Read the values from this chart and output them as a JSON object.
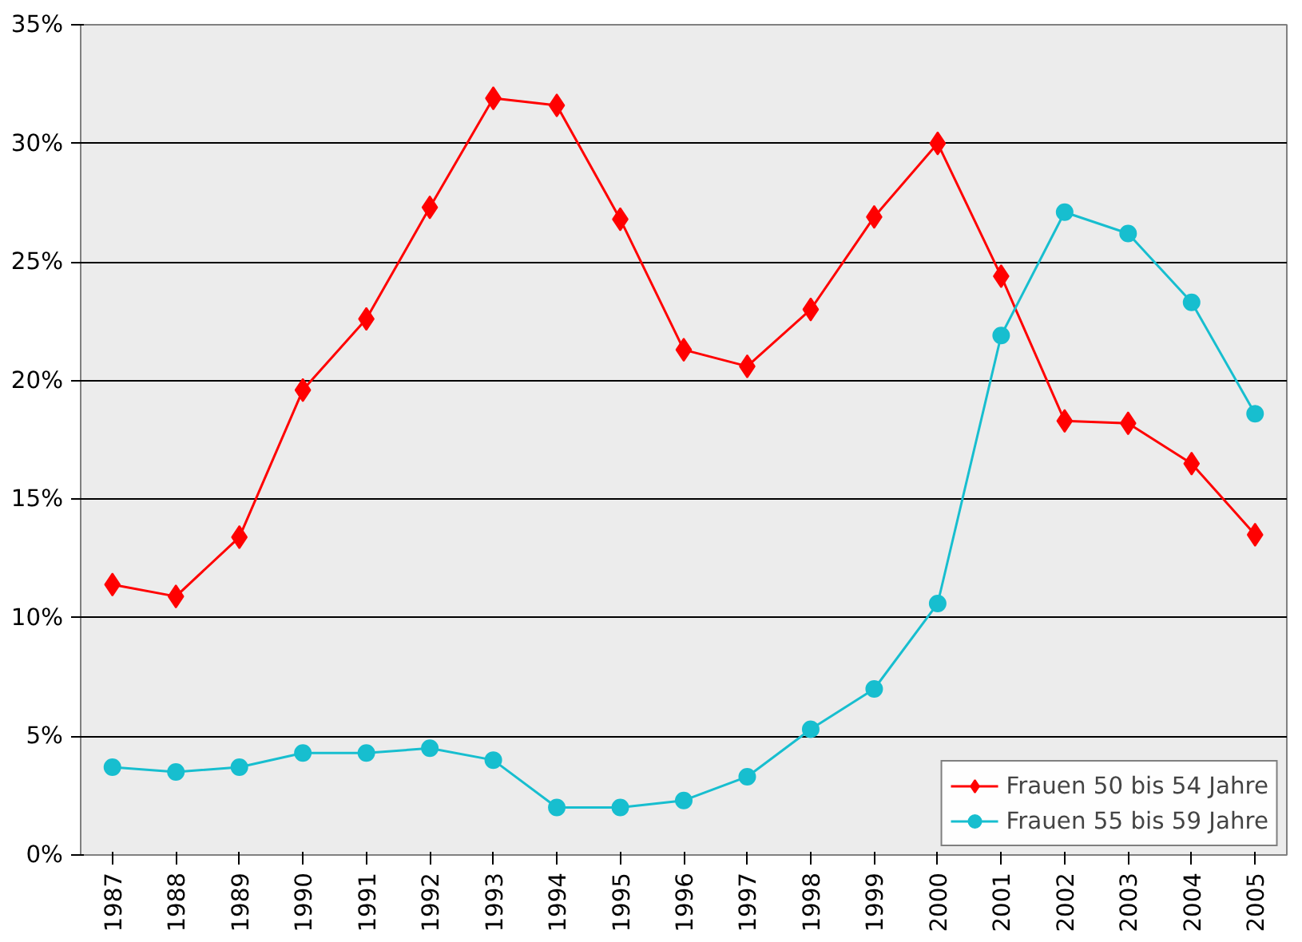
{
  "chart_data": {
    "type": "line",
    "categories": [
      "1987",
      "1988",
      "1989",
      "1990",
      "1991",
      "1992",
      "1993",
      "1994",
      "1995",
      "1996",
      "1997",
      "1998",
      "1999",
      "2000",
      "2001",
      "2002",
      "2003",
      "2004",
      "2005"
    ],
    "series": [
      {
        "name": "Frauen 50 bis 54 Jahre",
        "color": "#ff0000",
        "marker": "diamond",
        "values": [
          11.4,
          10.9,
          13.4,
          19.6,
          22.6,
          27.3,
          31.9,
          31.6,
          26.8,
          21.3,
          20.6,
          23.0,
          26.9,
          30.0,
          24.4,
          18.3,
          18.2,
          16.5,
          13.5
        ]
      },
      {
        "name": "Frauen 55 bis 59 Jahre",
        "color": "#17becf",
        "marker": "circle",
        "values": [
          3.7,
          3.5,
          3.7,
          4.3,
          4.3,
          4.5,
          4.0,
          2.0,
          2.0,
          2.3,
          3.3,
          5.3,
          7.0,
          10.6,
          21.9,
          27.1,
          26.2,
          23.3,
          18.6
        ]
      }
    ],
    "ylim": [
      0,
      35
    ],
    "yticks": [
      {
        "value": 0,
        "label": "0%"
      },
      {
        "value": 5,
        "label": "5%"
      },
      {
        "value": 10,
        "label": "10%"
      },
      {
        "value": 15,
        "label": "15%"
      },
      {
        "value": 20,
        "label": "20%"
      },
      {
        "value": 25,
        "label": "25%"
      },
      {
        "value": 30,
        "label": "30%"
      },
      {
        "value": 35,
        "label": "35%"
      }
    ],
    "grid": "y",
    "legend": "bottom right",
    "line_style": "solid"
  }
}
